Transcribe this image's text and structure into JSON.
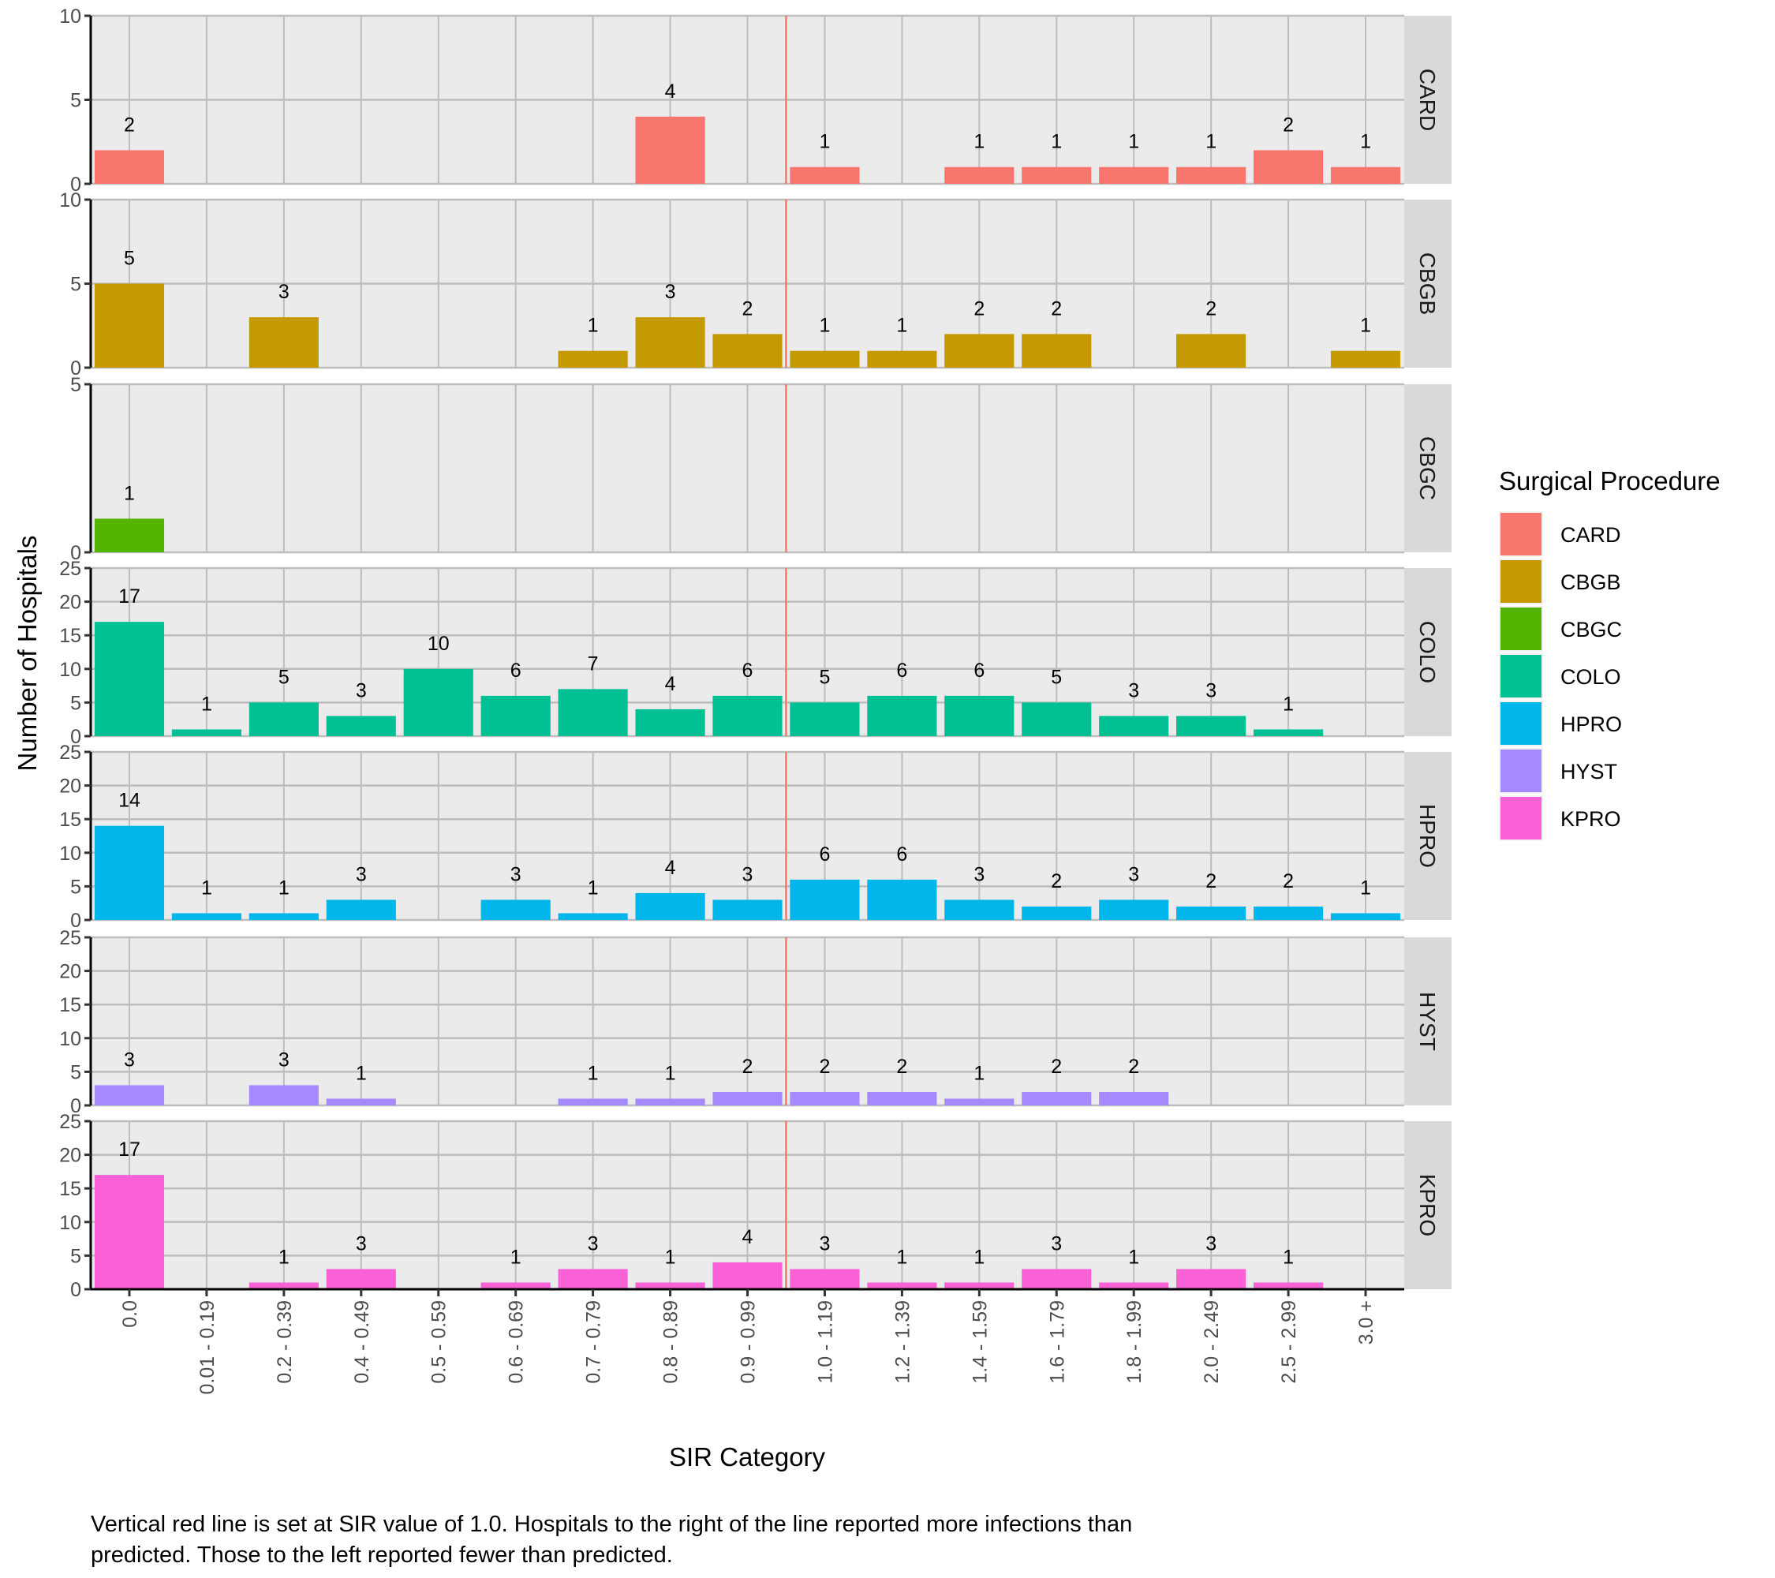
{
  "chart_data": {
    "type": "bar",
    "layout": "faceted-rows",
    "xlabel": "SIR Category",
    "ylabel": "Number of Hospitals",
    "caption": [
      "Vertical red line is set at SIR value of 1.0. Hospitals to the right of the line reported more infections than",
      "predicted. Those to the left reported fewer than predicted."
    ],
    "reference_line": {
      "position_between": [
        "0.9 - 0.99",
        "1.0 - 1.19"
      ],
      "label": "SIR = 1.0",
      "color": "#F8766D"
    },
    "categories": [
      "0.0",
      "0.01 - 0.19",
      "0.2 - 0.39",
      "0.4 - 0.49",
      "0.5 - 0.59",
      "0.6 - 0.69",
      "0.7 - 0.79",
      "0.8 - 0.89",
      "0.9 - 0.99",
      "1.0 - 1.19",
      "1.2 - 1.39",
      "1.4 - 1.59",
      "1.6 - 1.79",
      "1.8 - 1.99",
      "2.0 - 2.49",
      "2.5 - 2.99",
      "3.0 +"
    ],
    "grid": true,
    "legend": {
      "title": "Surgical Procedure",
      "placement": "right"
    },
    "series": [
      {
        "name": "CARD",
        "color": "#F8766D",
        "ylim": [
          0,
          10
        ],
        "yticks": [
          0,
          5,
          10
        ],
        "values": [
          2,
          null,
          null,
          null,
          null,
          null,
          null,
          4,
          null,
          1,
          null,
          1,
          1,
          1,
          1,
          2,
          1
        ]
      },
      {
        "name": "CBGB",
        "color": "#C49A00",
        "ylim": [
          0,
          10
        ],
        "yticks": [
          0,
          5,
          10
        ],
        "values": [
          5,
          null,
          3,
          null,
          null,
          null,
          1,
          3,
          2,
          1,
          1,
          2,
          2,
          null,
          2,
          null,
          1
        ]
      },
      {
        "name": "CBGC",
        "color": "#53B400",
        "ylim": [
          0,
          5
        ],
        "yticks": [
          0,
          5
        ],
        "values": [
          1,
          null,
          null,
          null,
          null,
          null,
          null,
          null,
          null,
          null,
          null,
          null,
          null,
          null,
          null,
          null,
          null
        ]
      },
      {
        "name": "COLO",
        "color": "#00C094",
        "ylim": [
          0,
          25
        ],
        "yticks": [
          0,
          5,
          10,
          15,
          20,
          25
        ],
        "values": [
          17,
          1,
          5,
          3,
          10,
          6,
          7,
          4,
          6,
          5,
          6,
          6,
          5,
          3,
          3,
          1,
          null
        ]
      },
      {
        "name": "HPRO",
        "color": "#00B6EB",
        "ylim": [
          0,
          25
        ],
        "yticks": [
          0,
          5,
          10,
          15,
          20,
          25
        ],
        "values": [
          14,
          1,
          1,
          3,
          null,
          3,
          1,
          4,
          3,
          6,
          6,
          3,
          2,
          3,
          2,
          2,
          1
        ]
      },
      {
        "name": "HYST",
        "color": "#A58AFF",
        "ylim": [
          0,
          25
        ],
        "yticks": [
          0,
          5,
          10,
          15,
          20,
          25
        ],
        "values": [
          3,
          null,
          3,
          1,
          null,
          null,
          1,
          1,
          2,
          2,
          2,
          1,
          2,
          2,
          null,
          null,
          null
        ]
      },
      {
        "name": "KPRO",
        "color": "#FB61D7",
        "ylim": [
          0,
          25
        ],
        "yticks": [
          0,
          5,
          10,
          15,
          20,
          25
        ],
        "values": [
          17,
          null,
          1,
          3,
          null,
          1,
          3,
          1,
          4,
          3,
          1,
          1,
          3,
          1,
          3,
          1,
          null
        ]
      }
    ]
  }
}
